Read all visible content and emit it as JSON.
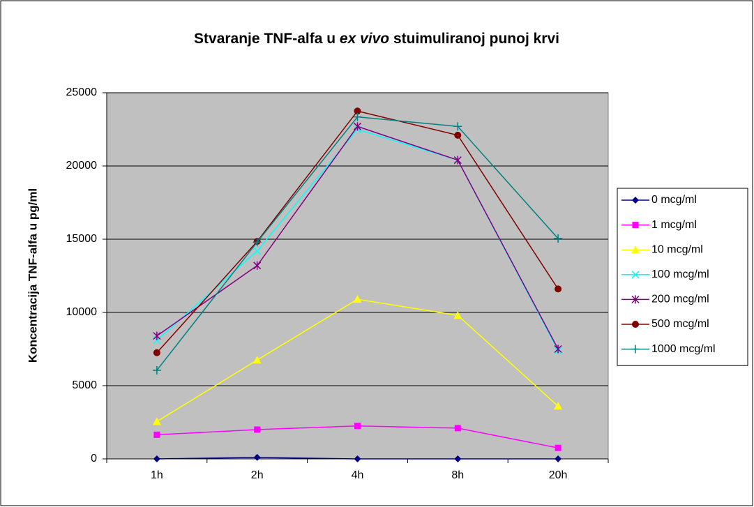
{
  "chart_data": {
    "type": "line",
    "title": "Stvaranje TNF-alfa u ex vivo stuimuliranoj punoj krvi",
    "title_italic": "ex vivo",
    "y_label": "Koncentracija TNF-alfa u pg/ml",
    "categories": [
      "1h",
      "2h",
      "4h",
      "8h",
      "20h"
    ],
    "ylim": [
      0,
      25000
    ],
    "yticks": [
      0,
      5000,
      10000,
      15000,
      20000,
      25000
    ],
    "grid": true,
    "legend": "right",
    "series": [
      {
        "name": "0 mcg/ml",
        "color": "#000080",
        "marker": "diamond",
        "values": [
          0,
          100,
          0,
          0,
          0
        ]
      },
      {
        "name": "1 mcg/ml",
        "color": "#ff00ff",
        "marker": "square",
        "values": [
          1650,
          2000,
          2250,
          2100,
          750
        ]
      },
      {
        "name": "10 mcg/ml",
        "color": "#ffff00",
        "marker": "triangle",
        "values": [
          2550,
          6750,
          10900,
          9800,
          3600
        ]
      },
      {
        "name": "100 mcg/ml",
        "color": "#00ffff",
        "marker": "x",
        "values": [
          8100,
          14200,
          22500,
          20400,
          7400
        ]
      },
      {
        "name": "200 mcg/ml",
        "color": "#800080",
        "marker": "asterisk",
        "values": [
          8400,
          13200,
          22700,
          20400,
          7500
        ]
      },
      {
        "name": "500 mcg/ml",
        "color": "#800000",
        "marker": "circle",
        "values": [
          7250,
          14850,
          23750,
          22100,
          11600
        ]
      },
      {
        "name": "1000 mcg/ml",
        "color": "#008080",
        "marker": "plus",
        "values": [
          6050,
          14800,
          23350,
          22700,
          15050
        ]
      }
    ]
  }
}
